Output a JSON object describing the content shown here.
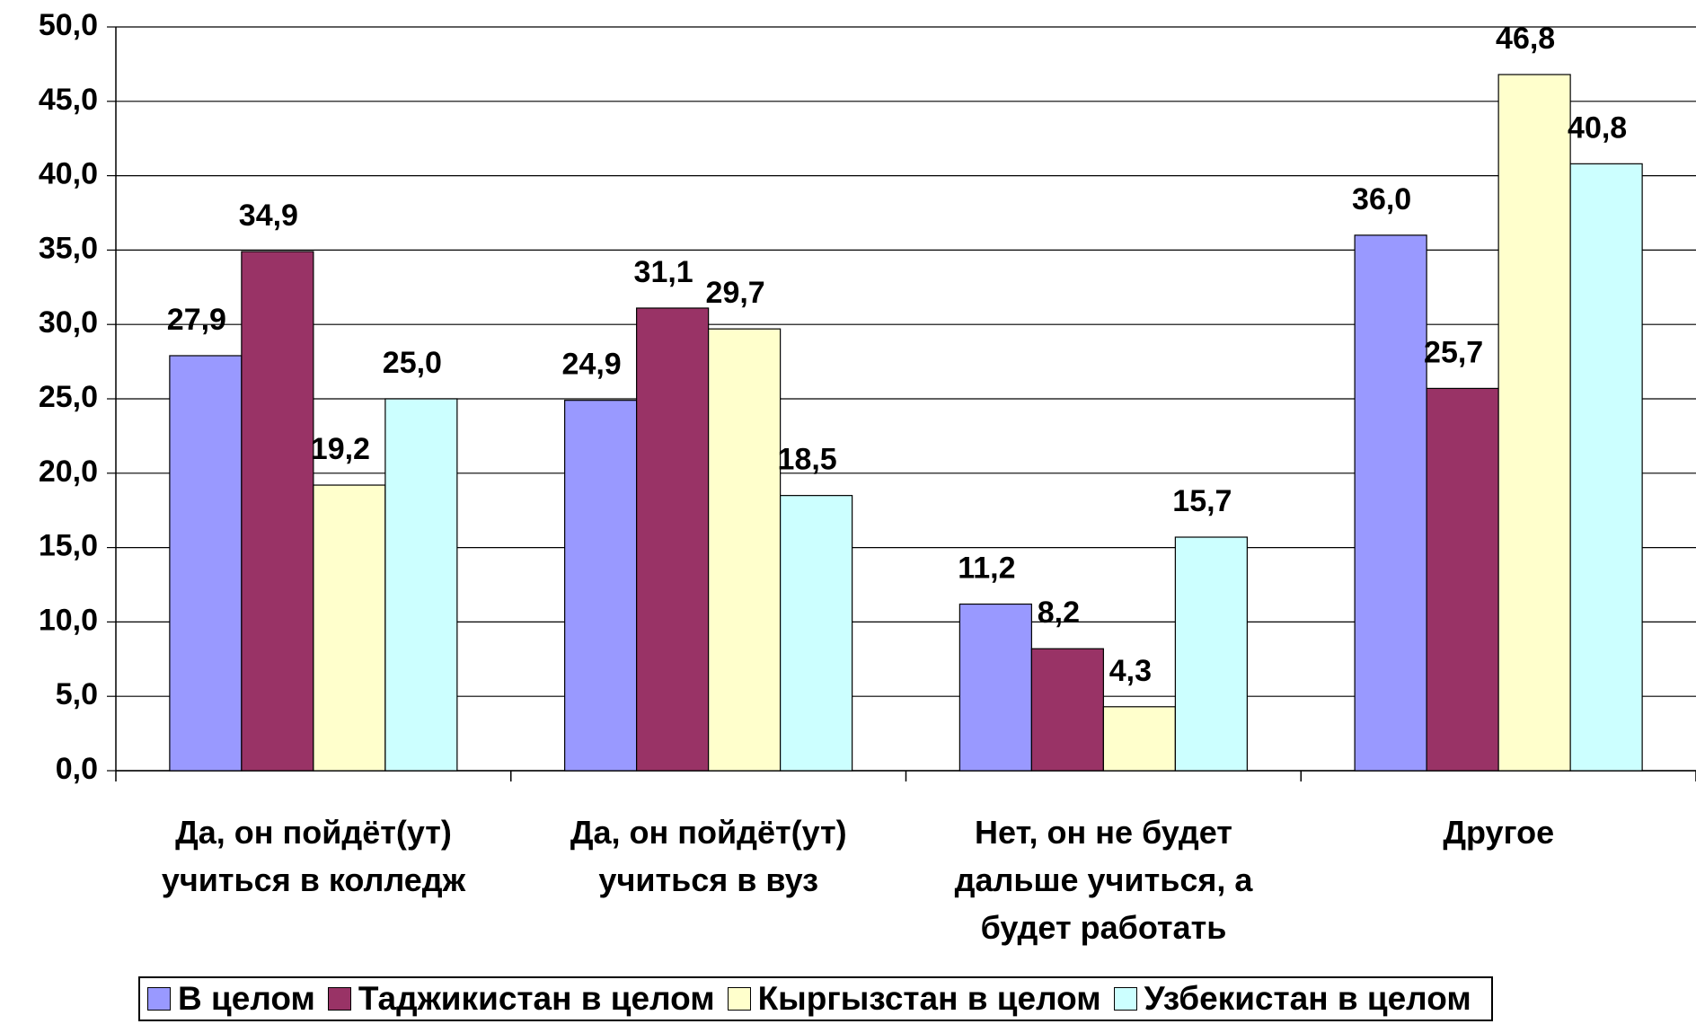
{
  "chart_data": {
    "type": "bar",
    "categories": [
      "Да, он пойдёт(ут)\nучиться в колледж",
      "Да, он пойдёт(ут)\nучиться в вуз",
      "Нет, он не будет\nдальше учиться, а\nбудет работать",
      "Другое"
    ],
    "series": [
      {
        "name": "В целом",
        "color": "#9999ff",
        "values": [
          27.9,
          24.9,
          11.2,
          36.0
        ],
        "value_labels": [
          "27,9",
          "24,9",
          "11,2",
          "36,0"
        ]
      },
      {
        "name": "Таджикистан в целом",
        "color": "#993366",
        "values": [
          34.9,
          31.1,
          8.2,
          25.7
        ],
        "value_labels": [
          "34,9",
          "31,1",
          "8,2",
          "25,7"
        ]
      },
      {
        "name": "Кыргызстан в целом",
        "color": "#ffffcc",
        "values": [
          19.2,
          29.7,
          4.3,
          46.8
        ],
        "value_labels": [
          "19,2",
          "29,7",
          "4,3",
          "46,8"
        ]
      },
      {
        "name": "Узбекистан в целом",
        "color": "#ccffff",
        "values": [
          25.0,
          18.5,
          15.7,
          40.8
        ],
        "value_labels": [
          "25,0",
          "18,5",
          "15,7",
          "40,8"
        ]
      }
    ],
    "ylim": [
      0,
      50
    ],
    "yticks": [
      {
        "value": 0,
        "label": "0,0"
      },
      {
        "value": 5,
        "label": "5,0"
      },
      {
        "value": 10,
        "label": "10,0"
      },
      {
        "value": 15,
        "label": "15,0"
      },
      {
        "value": 20,
        "label": "20,0"
      },
      {
        "value": 25,
        "label": "25,0"
      },
      {
        "value": 30,
        "label": "30,0"
      },
      {
        "value": 35,
        "label": "35,0"
      },
      {
        "value": 40,
        "label": "40,0"
      },
      {
        "value": 45,
        "label": "45,0"
      },
      {
        "value": 50,
        "label": "50,0"
      }
    ],
    "grid": true,
    "legend": "bottom"
  }
}
